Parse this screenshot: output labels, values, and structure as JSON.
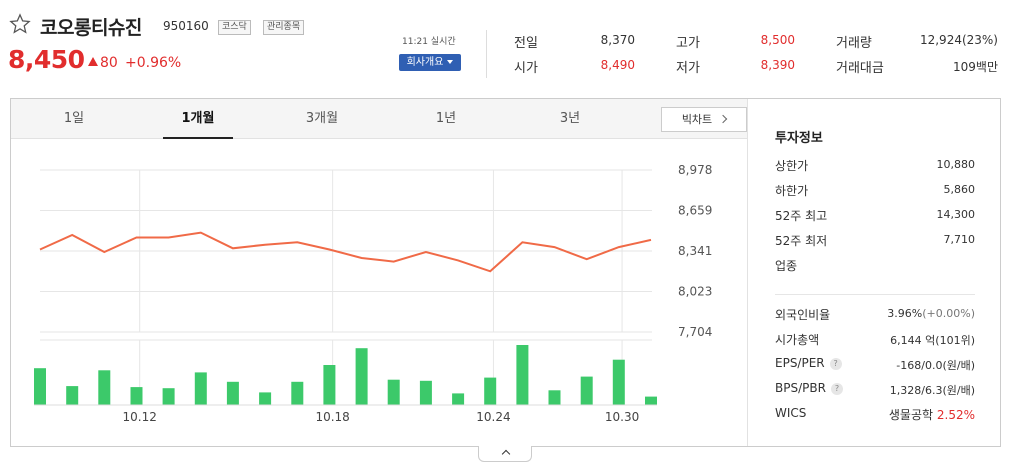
{
  "header": {
    "stock_name": "코오롱티슈진",
    "stock_code": "950160",
    "badges": [
      "코스닥",
      "관리종목"
    ],
    "price": "8,450",
    "change_value": "80",
    "change_percent": "+0.96%",
    "realtime_label": "11:21 실시간",
    "company_button": "회사개요"
  },
  "quote": {
    "prev_close_label": "전일",
    "prev_close": "8,370",
    "high_label": "고가",
    "high": "8,500",
    "volume_label": "거래량",
    "volume": "12,924(23%)",
    "open_label": "시가",
    "open": "8,490",
    "low_label": "저가",
    "low": "8,390",
    "trade_value_label": "거래대금",
    "trade_value": "109백만"
  },
  "tabs": [
    "1일",
    "1개월",
    "3개월",
    "1년",
    "3년"
  ],
  "active_tab": "1개월",
  "big_chart_button": "빅차트",
  "chart_data": {
    "type": "line",
    "y_ticks": [
      "8,978",
      "8,659",
      "8,341",
      "8,023",
      "7,704"
    ],
    "x_ticks": [
      "10.12",
      "10.18",
      "10.24",
      "10.30"
    ],
    "ylim": [
      7704,
      8978
    ],
    "series": [
      {
        "values": [
          8320,
          8440,
          8300,
          8420,
          8420,
          8460,
          8330,
          8360,
          8380,
          8320,
          8250,
          8220,
          8300,
          8230,
          8140,
          8380,
          8340,
          8240,
          8340,
          8400
        ]
      },
      {
        "type": "bar",
        "values": [
          35,
          18,
          33,
          17,
          16,
          31,
          22,
          12,
          22,
          38,
          54,
          24,
          23,
          11,
          26,
          57,
          14,
          27,
          43,
          8
        ]
      }
    ],
    "grid": true
  },
  "info": {
    "title": "투자정보",
    "rows": [
      {
        "label": "상한가",
        "value": "10,880",
        "color": "red"
      },
      {
        "label": "하한가",
        "value": "5,860",
        "color": "blue"
      },
      {
        "label": "52주 최고",
        "value": "14,300",
        "color": "default"
      },
      {
        "label": "52주 최저",
        "value": "7,710",
        "color": "default"
      },
      {
        "label": "업종",
        "value": "",
        "color": "default"
      }
    ],
    "rows2": [
      {
        "label": "외국인비율",
        "value": "3.96%",
        "value_suffix": "(+0.00%)"
      },
      {
        "label": "시가총액",
        "value": "6,144",
        "value_suffix": "억(101위)"
      },
      {
        "label": "EPS/PER",
        "value": "-168/0.0",
        "value_suffix": "(원/배)",
        "help": "?"
      },
      {
        "label": "BPS/PBR",
        "value": "1,328/6.3",
        "value_suffix": "(원/배)",
        "help": "?"
      },
      {
        "label": "WICS",
        "value": "생물공학",
        "value_suffix": "2.52%"
      }
    ]
  },
  "colors": {
    "up": "#e12d2d",
    "down": "#2f5fdb",
    "line": "#f06a47",
    "bar": "#3cc96a",
    "button": "#2f5fb3"
  }
}
